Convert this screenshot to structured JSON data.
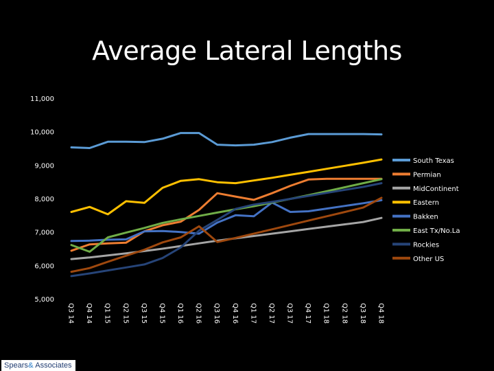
{
  "logo": {
    "text_a": "Spears",
    "amp": "&",
    "text_b": " Associates"
  },
  "chart_data": {
    "type": "line",
    "title": "Average Lateral Lengths",
    "xlabel": "",
    "ylabel": "",
    "ylim": [
      5000,
      11000
    ],
    "yticks": [
      "5,000",
      "6,000",
      "7,000",
      "8,000",
      "9,000",
      "10,000",
      "11,000"
    ],
    "grid": false,
    "legend_position": "right",
    "categories": [
      "Q3 14",
      "Q4 14",
      "Q1 15",
      "Q2 15",
      "Q3 15",
      "Q4 15",
      "Q1 16",
      "Q2 16",
      "Q3 16",
      "Q4 16",
      "Q1 17",
      "Q2 17",
      "Q3 17",
      "Q4 17",
      "Q1 18",
      "Q2 18",
      "Q3 18",
      "Q4 18"
    ],
    "series": [
      {
        "name": "South Texas",
        "color": "#5b9bd5",
        "values": [
          9530,
          9510,
          9700,
          9700,
          9690,
          9790,
          9960,
          9960,
          9610,
          9590,
          9610,
          9690,
          9820,
          9930,
          9930,
          9930,
          9930,
          9920
        ]
      },
      {
        "name": "Permian",
        "color": "#ed7d31",
        "values": [
          6440,
          6630,
          6660,
          6680,
          7020,
          7200,
          7310,
          7660,
          8160,
          8060,
          7960,
          8160,
          8380,
          8570,
          8590,
          8590,
          8590,
          8590
        ]
      },
      {
        "name": "MidContinent",
        "color": "#a5a5a5",
        "values": [
          6190,
          6240,
          6300,
          6360,
          6430,
          6500,
          6580,
          6660,
          6740,
          6810,
          6880,
          6950,
          7020,
          7090,
          7160,
          7230,
          7300,
          7420
        ]
      },
      {
        "name": "Eastern",
        "color": "#ffc000",
        "values": [
          7600,
          7750,
          7530,
          7920,
          7870,
          8320,
          8530,
          8580,
          8490,
          8460,
          8540,
          8620,
          8710,
          8800,
          8890,
          8980,
          9070,
          9170
        ]
      },
      {
        "name": "Bakken",
        "color": "#4472c4",
        "values": [
          6730,
          6740,
          6770,
          6780,
          7020,
          7030,
          7000,
          6950,
          7280,
          7500,
          7470,
          7880,
          7600,
          7620,
          7700,
          7780,
          7860,
          7950
        ]
      },
      {
        "name": "East Tx/No.La",
        "color": "#70ad47",
        "values": [
          6610,
          6410,
          6840,
          6980,
          7120,
          7270,
          7380,
          7480,
          7580,
          7680,
          7770,
          7880,
          7990,
          8100,
          8220,
          8340,
          8460,
          8580
        ]
      },
      {
        "name": "Rockies",
        "color": "#264478",
        "values": [
          5680,
          5760,
          5850,
          5940,
          6030,
          6220,
          6540,
          7040,
          7360,
          7690,
          7820,
          7900,
          7990,
          8080,
          8170,
          8260,
          8350,
          8460
        ]
      },
      {
        "name": "Other US",
        "color": "#9e480e",
        "values": [
          5810,
          5920,
          6110,
          6290,
          6470,
          6690,
          6840,
          7170,
          6700,
          6820,
          6950,
          7080,
          7210,
          7340,
          7470,
          7600,
          7730,
          8020
        ]
      }
    ]
  }
}
